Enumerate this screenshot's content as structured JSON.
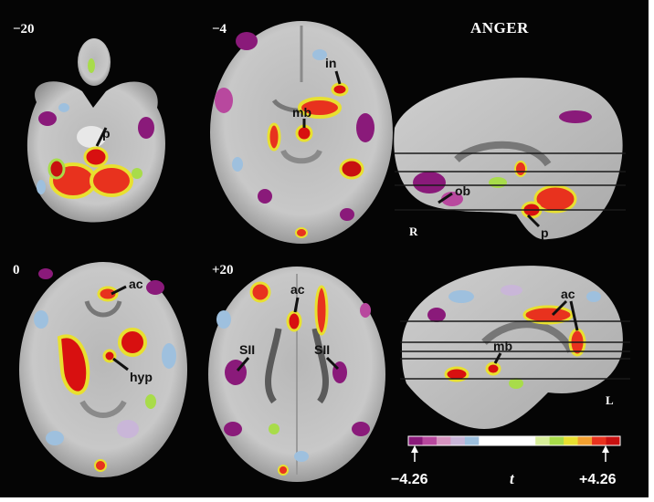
{
  "title": "ANGER",
  "panels": [
    {
      "slice_label": "−20",
      "annotations": [
        "p"
      ]
    },
    {
      "slice_label": "−4",
      "annotations": [
        "in",
        "mb"
      ]
    },
    {
      "slice_label": "0",
      "annotations": [
        "ac",
        "hyp"
      ]
    },
    {
      "slice_label": "+20",
      "annotations": [
        "ac",
        "SII",
        "SII"
      ]
    }
  ],
  "sagittal_top": {
    "annotations": [
      "ob",
      "p"
    ],
    "side_label": "R"
  },
  "sagittal_bottom": {
    "annotations": [
      "ac",
      "mb"
    ],
    "side_label": "L"
  },
  "colorbar": {
    "min_label": "−4.26",
    "max_label": "+4.26",
    "variable": "t",
    "colors": [
      "#8a1a7a",
      "#b8489e",
      "#d694c0",
      "#c9b6d8",
      "#9ec0de",
      "#ffffff",
      "#ffffff",
      "#ffffff",
      "#ffffff",
      "#d8ef9a",
      "#a8dc4a",
      "#e8e030",
      "#f2a030",
      "#e8321e",
      "#c81010"
    ]
  }
}
